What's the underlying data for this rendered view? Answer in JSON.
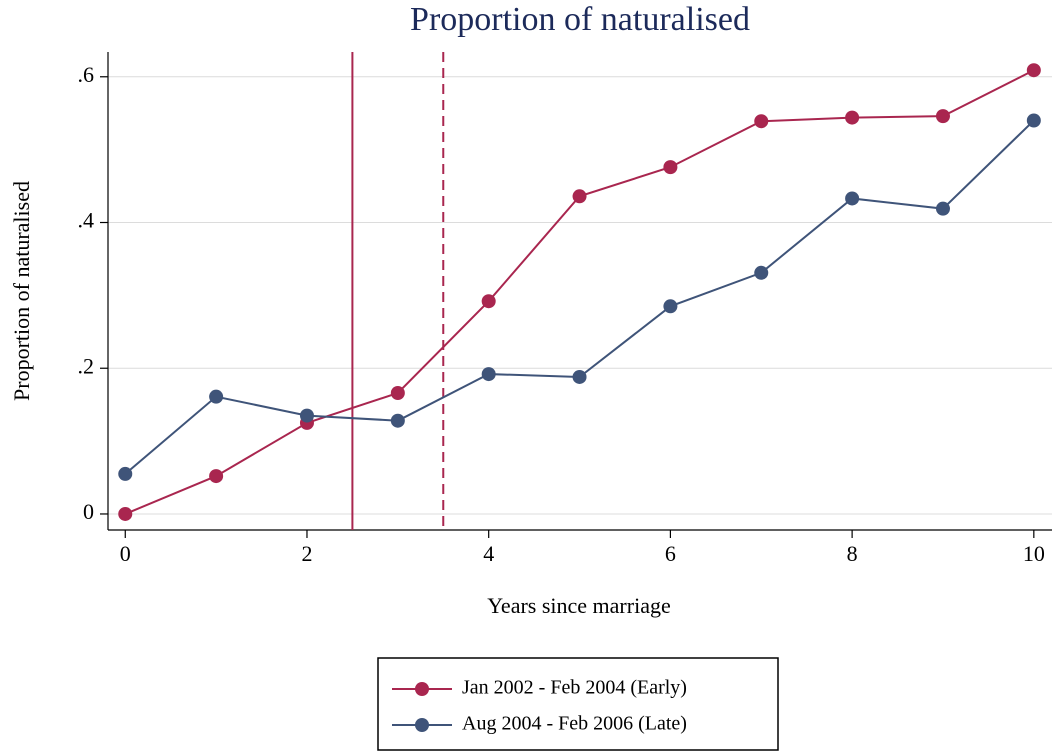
{
  "chart_data": {
    "type": "line",
    "title": "Proportion of naturalised",
    "xlabel": "Years since marriage",
    "ylabel": "Proportion of naturalised",
    "x": [
      0,
      1,
      2,
      3,
      4,
      5,
      6,
      7,
      8,
      9,
      10
    ],
    "series": [
      {
        "name": "Jan 2002 - Feb 2004 (Early)",
        "color": "#a9264f",
        "values": [
          0,
          0.052,
          0.125,
          0.166,
          0.292,
          0.436,
          0.476,
          0.539,
          0.544,
          0.546,
          0.609
        ]
      },
      {
        "name": "Aug 2004 - Feb 2006 (Late)",
        "color": "#3f5479",
        "values": [
          0.055,
          0.161,
          0.135,
          0.128,
          0.192,
          0.188,
          0.285,
          0.331,
          0.433,
          0.419,
          0.54
        ]
      }
    ],
    "reference_lines": [
      {
        "x": 2.5,
        "style": "solid",
        "color": "#a9264f"
      },
      {
        "x": 3.5,
        "style": "dashed",
        "color": "#a9264f"
      }
    ],
    "xlim": [
      -0.19,
      10.2
    ],
    "ylim": [
      -0.022,
      0.634
    ],
    "xticks": [
      0,
      2,
      4,
      6,
      8,
      10
    ],
    "yticks": [
      0,
      {
        "value": 0.2,
        "label": ".2"
      },
      {
        "value": 0.4,
        "label": ".4"
      },
      {
        "value": 0.6,
        "label": ".6"
      }
    ],
    "grid": true,
    "legend": "bottom"
  }
}
